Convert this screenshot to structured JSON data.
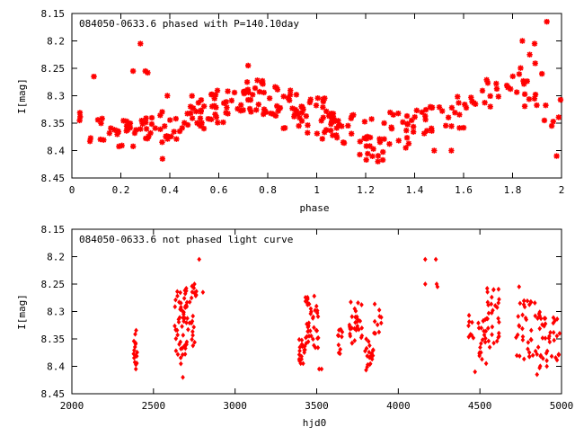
{
  "chart_data": [
    {
      "type": "scatter",
      "title": "084050-0633.6 phased with P=140.10day",
      "xlabel": "phase",
      "ylabel": "I[mag]",
      "xlim": [
        0,
        2
      ],
      "ylim": [
        8.45,
        8.15
      ],
      "y_inverted": true,
      "grid": false,
      "marker": "star",
      "color": "#ff0000",
      "xticks": [
        "0",
        "0.2",
        "0.4",
        "0.6",
        "0.8",
        "1",
        "1.2",
        "1.4",
        "1.6",
        "1.8",
        "2"
      ],
      "yticks": [
        "8.15",
        "8.2",
        "8.25",
        "8.3",
        "8.35",
        "8.4",
        "8.45"
      ],
      "clusters": [
        {
          "xr": [
            0.0,
            0.05
          ],
          "yr": [
            8.325,
            8.345
          ],
          "n": 3
        },
        {
          "xr": [
            0.06,
            0.14
          ],
          "yr": [
            8.33,
            8.39
          ],
          "n": 7
        },
        {
          "xr": [
            0.14,
            0.26
          ],
          "yr": [
            8.34,
            8.4
          ],
          "n": 18
        },
        {
          "xr": [
            0.26,
            0.36
          ],
          "yr": [
            8.34,
            8.38
          ],
          "n": 14
        },
        {
          "xr": [
            0.36,
            0.46
          ],
          "yr": [
            8.31,
            8.39
          ],
          "n": 16
        },
        {
          "xr": [
            0.46,
            0.56
          ],
          "yr": [
            8.3,
            8.36
          ],
          "n": 20
        },
        {
          "xr": [
            0.56,
            0.66
          ],
          "yr": [
            8.29,
            8.35
          ],
          "n": 20
        },
        {
          "xr": [
            0.66,
            0.76
          ],
          "yr": [
            8.27,
            8.33
          ],
          "n": 20
        },
        {
          "xr": [
            0.76,
            0.86
          ],
          "yr": [
            8.27,
            8.34
          ],
          "n": 20
        },
        {
          "xr": [
            0.86,
            0.96
          ],
          "yr": [
            8.29,
            8.36
          ],
          "n": 22
        },
        {
          "xr": [
            0.96,
            1.06
          ],
          "yr": [
            8.3,
            8.38
          ],
          "n": 22
        },
        {
          "xr": [
            1.06,
            1.16
          ],
          "yr": [
            8.33,
            8.39
          ],
          "n": 20
        },
        {
          "xr": [
            1.16,
            1.28
          ],
          "yr": [
            8.34,
            8.42
          ],
          "n": 22
        },
        {
          "xr": [
            1.28,
            1.4
          ],
          "yr": [
            8.33,
            8.4
          ],
          "n": 18
        },
        {
          "xr": [
            1.4,
            1.52
          ],
          "yr": [
            8.32,
            8.37
          ],
          "n": 14
        },
        {
          "xr": [
            1.52,
            1.62
          ],
          "yr": [
            8.3,
            8.37
          ],
          "n": 12
        },
        {
          "xr": [
            1.62,
            1.72
          ],
          "yr": [
            8.27,
            8.32
          ],
          "n": 10
        },
        {
          "xr": [
            1.72,
            1.8
          ],
          "yr": [
            8.27,
            8.32
          ],
          "n": 6
        },
        {
          "xr": [
            1.8,
            1.9
          ],
          "yr": [
            8.24,
            8.32
          ],
          "n": 14
        },
        {
          "xr": [
            1.9,
            2.0
          ],
          "yr": [
            8.3,
            8.36
          ],
          "n": 4
        }
      ],
      "points": [
        {
          "x": 0.09,
          "y": 8.265
        },
        {
          "x": 0.25,
          "y": 8.255
        },
        {
          "x": 0.28,
          "y": 8.205
        },
        {
          "x": 0.3,
          "y": 8.255
        },
        {
          "x": 0.31,
          "y": 8.258
        },
        {
          "x": 0.37,
          "y": 8.415
        },
        {
          "x": 0.39,
          "y": 8.3
        },
        {
          "x": 0.72,
          "y": 8.245
        },
        {
          "x": 1.25,
          "y": 8.42
        },
        {
          "x": 1.43,
          "y": 8.33
        },
        {
          "x": 1.48,
          "y": 8.4
        },
        {
          "x": 1.55,
          "y": 8.4
        },
        {
          "x": 1.84,
          "y": 8.2
        },
        {
          "x": 1.87,
          "y": 8.225
        },
        {
          "x": 1.89,
          "y": 8.205
        },
        {
          "x": 1.92,
          "y": 8.26
        },
        {
          "x": 1.94,
          "y": 8.165
        },
        {
          "x": 1.93,
          "y": 8.345
        },
        {
          "x": 1.96,
          "y": 8.355
        },
        {
          "x": 1.98,
          "y": 8.41
        }
      ]
    },
    {
      "type": "scatter",
      "title": "084050-0633.6 not phased light curve",
      "xlabel": "hjd0",
      "ylabel": "I[mag]",
      "xlim": [
        2000,
        5000
      ],
      "ylim": [
        8.45,
        8.15
      ],
      "y_inverted": true,
      "grid": false,
      "marker": "diamond",
      "color": "#ff0000",
      "xticks": [
        "2000",
        "2500",
        "3000",
        "3500",
        "4000",
        "4500",
        "5000"
      ],
      "yticks": [
        "8.15",
        "8.2",
        "8.25",
        "8.3",
        "8.35",
        "8.4",
        "8.45"
      ],
      "clusters": [
        {
          "xr": [
            2375,
            2400
          ],
          "yr": [
            8.33,
            8.4
          ],
          "n": 16
        },
        {
          "xr": [
            2630,
            2700
          ],
          "yr": [
            8.26,
            8.4
          ],
          "n": 45
        },
        {
          "xr": [
            2700,
            2770
          ],
          "yr": [
            8.25,
            8.37
          ],
          "n": 30
        },
        {
          "xr": [
            3390,
            3430
          ],
          "yr": [
            8.35,
            8.4
          ],
          "n": 18
        },
        {
          "xr": [
            3430,
            3510
          ],
          "yr": [
            8.27,
            8.37
          ],
          "n": 40
        },
        {
          "xr": [
            3600,
            3660
          ],
          "yr": [
            8.33,
            8.38
          ],
          "n": 10
        },
        {
          "xr": [
            3700,
            3780
          ],
          "yr": [
            8.28,
            8.36
          ],
          "n": 30
        },
        {
          "xr": [
            3790,
            3850
          ],
          "yr": [
            8.35,
            8.41
          ],
          "n": 20
        },
        {
          "xr": [
            3850,
            3900
          ],
          "yr": [
            8.28,
            8.35
          ],
          "n": 10
        },
        {
          "xr": [
            4430,
            4480
          ],
          "yr": [
            8.3,
            8.35
          ],
          "n": 8
        },
        {
          "xr": [
            4480,
            4540
          ],
          "yr": [
            8.31,
            8.4
          ],
          "n": 20
        },
        {
          "xr": [
            4540,
            4620
          ],
          "yr": [
            8.25,
            8.37
          ],
          "n": 30
        },
        {
          "xr": [
            4720,
            4800
          ],
          "yr": [
            8.28,
            8.39
          ],
          "n": 22
        },
        {
          "xr": [
            4800,
            4880
          ],
          "yr": [
            8.28,
            8.41
          ],
          "n": 25
        },
        {
          "xr": [
            4880,
            4990
          ],
          "yr": [
            8.31,
            8.39
          ],
          "n": 28
        }
      ],
      "points": [
        {
          "x": 2392,
          "y": 8.405
        },
        {
          "x": 2680,
          "y": 8.42
        },
        {
          "x": 2780,
          "y": 8.205
        },
        {
          "x": 2803,
          "y": 8.265
        },
        {
          "x": 3515,
          "y": 8.405
        },
        {
          "x": 3530,
          "y": 8.405
        },
        {
          "x": 4165,
          "y": 8.205
        },
        {
          "x": 4165,
          "y": 8.25
        },
        {
          "x": 4230,
          "y": 8.205
        },
        {
          "x": 4235,
          "y": 8.25
        },
        {
          "x": 4240,
          "y": 8.255
        },
        {
          "x": 4470,
          "y": 8.41
        },
        {
          "x": 4740,
          "y": 8.255
        },
        {
          "x": 4850,
          "y": 8.415
        },
        {
          "x": 4910,
          "y": 8.4
        }
      ]
    }
  ]
}
